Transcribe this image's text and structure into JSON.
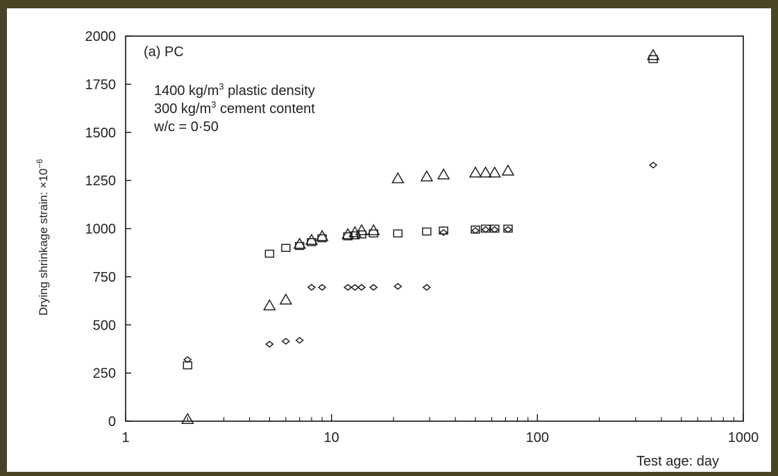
{
  "chart_data": {
    "type": "scatter",
    "x_scale": "log",
    "xlim": [
      1,
      1000
    ],
    "ylim": [
      0,
      2000
    ],
    "xticks": [
      1,
      10,
      100,
      1000
    ],
    "xtick_labels": [
      "1",
      "10",
      "100",
      "1000"
    ],
    "yticks": [
      0,
      250,
      500,
      750,
      1000,
      1250,
      1500,
      1750,
      2000
    ],
    "ytick_labels": [
      "0",
      "250",
      "500",
      "750",
      "1000",
      "1250",
      "1500",
      "1750",
      "2000"
    ],
    "xlabel": "Test age: day",
    "ylabel": "Drying shrinkage strain: ×10",
    "ylabel_exp": "−6",
    "grid": false,
    "legend": null,
    "annotations": {
      "panel": "(a) PC",
      "line1": "1400 kg/m",
      "line1_sup": "3",
      "line1_rest": " plastic density",
      "line2": "300 kg/m",
      "line2_sup": "3",
      "line2_rest": " cement content",
      "line3": "w/c = 0·50"
    },
    "series": [
      {
        "marker": "triangle",
        "points": [
          [
            2,
            10
          ],
          [
            5,
            600
          ],
          [
            6,
            630
          ],
          [
            7,
            920
          ],
          [
            8,
            940
          ],
          [
            9,
            960
          ],
          [
            12,
            970
          ],
          [
            13,
            980
          ],
          [
            14,
            990
          ],
          [
            16,
            990
          ],
          [
            21,
            1260
          ],
          [
            29,
            1270
          ],
          [
            35,
            1280
          ],
          [
            50,
            1290
          ],
          [
            56,
            1290
          ],
          [
            62,
            1290
          ],
          [
            72,
            1300
          ],
          [
            365,
            1900
          ]
        ]
      },
      {
        "marker": "square",
        "points": [
          [
            2,
            290
          ],
          [
            5,
            870
          ],
          [
            6,
            900
          ],
          [
            7,
            910
          ],
          [
            8,
            930
          ],
          [
            9,
            950
          ],
          [
            12,
            960
          ],
          [
            13,
            965
          ],
          [
            14,
            970
          ],
          [
            16,
            975
          ],
          [
            21,
            975
          ],
          [
            29,
            985
          ],
          [
            35,
            990
          ],
          [
            50,
            995
          ],
          [
            56,
            1000
          ],
          [
            62,
            1000
          ],
          [
            72,
            1000
          ],
          [
            365,
            1880
          ]
        ]
      },
      {
        "marker": "diamond",
        "points": [
          [
            2,
            320
          ],
          [
            5,
            400
          ],
          [
            6,
            415
          ],
          [
            7,
            420
          ],
          [
            8,
            695
          ],
          [
            9,
            695
          ],
          [
            12,
            695
          ],
          [
            13,
            695
          ],
          [
            14,
            695
          ],
          [
            16,
            695
          ],
          [
            21,
            700
          ],
          [
            29,
            695
          ],
          [
            35,
            980
          ],
          [
            50,
            990
          ],
          [
            56,
            995
          ],
          [
            62,
            995
          ],
          [
            72,
            995
          ],
          [
            365,
            1330
          ]
        ]
      }
    ]
  }
}
